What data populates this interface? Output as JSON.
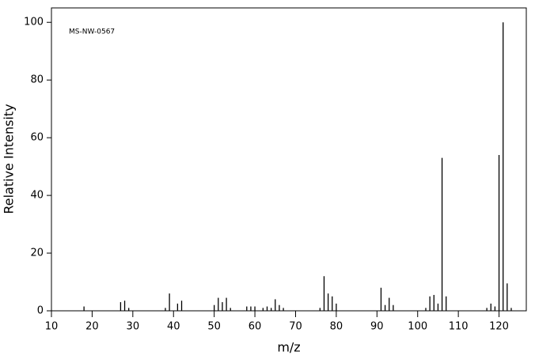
{
  "chart_data": {
    "type": "bar",
    "annotation": "MS-NW-0567",
    "xlabel": "m/z",
    "ylabel": "Relative Intensity",
    "x": [
      18,
      27,
      28,
      29,
      38,
      39,
      41,
      42,
      50,
      51,
      52,
      53,
      54,
      58,
      59,
      60,
      62,
      63,
      64,
      65,
      66,
      67,
      76,
      77,
      78,
      79,
      80,
      91,
      92,
      93,
      94,
      102,
      103,
      104,
      105,
      106,
      107,
      117,
      118,
      119,
      120,
      121,
      122,
      123
    ],
    "values": [
      1.5,
      3,
      3.5,
      1,
      1,
      6,
      2.5,
      3.5,
      2,
      4.5,
      3,
      4.5,
      1,
      1.5,
      1.5,
      1.5,
      1,
      1.5,
      1,
      4,
      2,
      1,
      1,
      12,
      6,
      5,
      2.5,
      8,
      2,
      4.5,
      2,
      1,
      5,
      5.5,
      2.5,
      53,
      5,
      1,
      2.5,
      1.5,
      54,
      100,
      9.5,
      1
    ],
    "color": "#000000",
    "xlim": [
      10,
      126.7
    ],
    "ylim": [
      0,
      105
    ],
    "xticks": [
      10,
      20,
      30,
      40,
      50,
      60,
      70,
      80,
      90,
      100,
      110,
      120
    ],
    "yticks": [
      0,
      20,
      40,
      60,
      80,
      100
    ]
  }
}
